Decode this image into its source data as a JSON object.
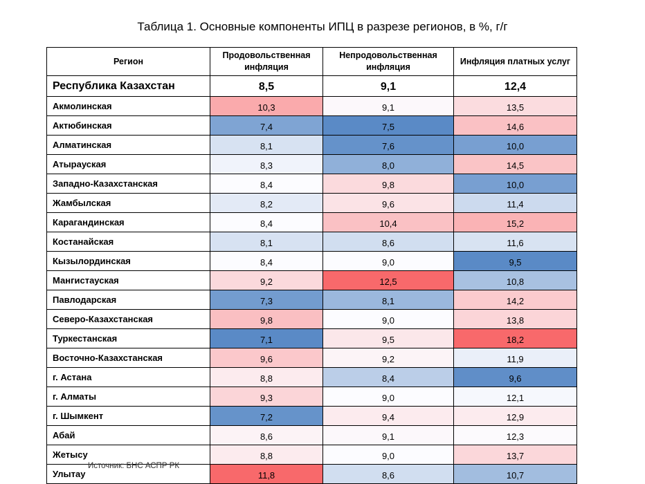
{
  "title": "Таблица 1. Основные компоненты ИПЦ в разрезе регионов, в %, г/г",
  "headers": [
    "Регион",
    "Продовольственная инфляция",
    "Непродовольственная инфляция",
    "Инфляция платных услуг"
  ],
  "total": {
    "region": "Республика Казахстан",
    "values": [
      "8,5",
      "9,1",
      "12,4"
    ]
  },
  "rows": [
    {
      "region": "Акмолинская",
      "values": [
        "10,3",
        "9,1",
        "13,5"
      ]
    },
    {
      "region": "Актюбинская",
      "values": [
        "7,4",
        "7,5",
        "14,6"
      ]
    },
    {
      "region": "Алматинская",
      "values": [
        "8,1",
        "7,6",
        "10,0"
      ]
    },
    {
      "region": "Атырауская",
      "values": [
        "8,3",
        "8,0",
        "14,5"
      ]
    },
    {
      "region": "Западно-Казахстанская",
      "values": [
        "8,4",
        "9,8",
        "10,0"
      ]
    },
    {
      "region": "Жамбылская",
      "values": [
        "8,2",
        "9,6",
        "11,4"
      ]
    },
    {
      "region": "Карагандинская",
      "values": [
        "8,4",
        "10,4",
        "15,2"
      ]
    },
    {
      "region": "Костанайская",
      "values": [
        "8,1",
        "8,6",
        "11,6"
      ]
    },
    {
      "region": "Кызылординская",
      "values": [
        "8,4",
        "9,0",
        "9,5"
      ]
    },
    {
      "region": "Мангистауская",
      "values": [
        "9,2",
        "12,5",
        "10,8"
      ]
    },
    {
      "region": "Павлодарская",
      "values": [
        "7,3",
        "8,1",
        "14,2"
      ]
    },
    {
      "region": "Северо-Казахстанская",
      "values": [
        "9,8",
        "9,0",
        "13,8"
      ]
    },
    {
      "region": "Туркестанская",
      "values": [
        "7,1",
        "9,5",
        "18,2"
      ]
    },
    {
      "region": "Восточно-Казахстанская",
      "values": [
        "9,6",
        "9,2",
        "11,9"
      ]
    },
    {
      "region": "г. Астана",
      "values": [
        "8,8",
        "8,4",
        "9,6"
      ]
    },
    {
      "region": "г. Алматы",
      "values": [
        "9,3",
        "9,0",
        "12,1"
      ]
    },
    {
      "region": "г. Шымкент",
      "values": [
        "7,2",
        "9,4",
        "12,9"
      ]
    },
    {
      "region": "Абай",
      "values": [
        "8,6",
        "9,1",
        "12,3"
      ]
    },
    {
      "region": "Жетысу",
      "values": [
        "8,8",
        "9,0",
        "13,7"
      ]
    },
    {
      "region": "Улытау",
      "values": [
        "11,8",
        "8,6",
        "10,7"
      ]
    }
  ],
  "colors": {
    "low": "#5a8ac6",
    "mid": "#fcfcff",
    "high": "#f8696b"
  },
  "source": "Источник: БНС АСПР РК"
}
